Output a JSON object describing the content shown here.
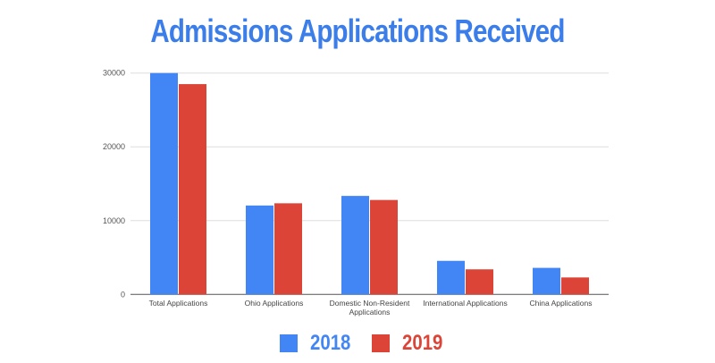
{
  "chart_data": {
    "type": "bar",
    "title": "Admissions Applications Received",
    "categories": [
      "Total Applications",
      "Ohio Applications",
      "Domestic Non-Resident Applications",
      "International Applications",
      "China Applications"
    ],
    "category_lines": [
      [
        "Total Applications"
      ],
      [
        "Ohio Applications"
      ],
      [
        "Domestic Non-Resident",
        "Applications"
      ],
      [
        "International Applications"
      ],
      [
        "China Applications"
      ]
    ],
    "series": [
      {
        "name": "2018",
        "color": "#4285f4",
        "values": [
          30000,
          12050,
          13350,
          4550,
          3600
        ]
      },
      {
        "name": "2019",
        "color": "#db4437",
        "values": [
          28500,
          12350,
          12800,
          3400,
          2300
        ]
      }
    ],
    "yticks": [
      0,
      10000,
      20000,
      30000
    ],
    "ylim": [
      0,
      30000
    ],
    "grid": true,
    "legend": "bottom",
    "xlabel": "",
    "ylabel": ""
  }
}
